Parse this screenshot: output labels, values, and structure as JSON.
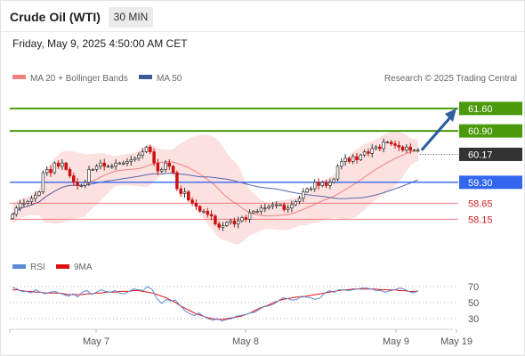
{
  "header": {
    "title": "Crude Oil (WTI)",
    "timeframe": "30 MIN"
  },
  "date_label": "Friday, May 9, 2025 4:50:00 AM CET",
  "legend": {
    "ma20": "MA 20 + Bollinger Bands",
    "ma50": "MA 50",
    "rsi": "RSI",
    "ma9": "9MA",
    "credit": "Research © 2025 Trading Central"
  },
  "colors": {
    "up": "#333333",
    "down": "#cc1111",
    "band": "#f9c9c9",
    "ma20": "#f08080",
    "ma50": "#5566aa",
    "target": "#4a9a0c",
    "pivot": "#3366ee",
    "support": "#e84a4a",
    "current": "#333333",
    "arrow": "#2f5f9f",
    "rsi": "#5b8ad6",
    "ma9": "#dd1111"
  },
  "chart_data": [
    {
      "type": "candlestick",
      "x_ticks": [
        "May 7",
        "May 8",
        "May 9",
        "May 19"
      ],
      "price_levels": [
        {
          "value": 61.6,
          "label": "61.60",
          "kind": "target"
        },
        {
          "value": 60.9,
          "label": "60.90",
          "kind": "target"
        },
        {
          "value": 60.17,
          "label": "60.17",
          "kind": "current"
        },
        {
          "value": 59.3,
          "label": "59.30",
          "kind": "pivot"
        },
        {
          "value": 58.65,
          "label": "58.65",
          "kind": "support"
        },
        {
          "value": 58.15,
          "label": "58.15",
          "kind": "support"
        }
      ],
      "ylim": [
        57.3,
        62.15
      ],
      "closes": [
        58.3,
        58.5,
        58.65,
        58.65,
        58.7,
        58.8,
        58.9,
        59.0,
        59.6,
        59.7,
        59.6,
        59.9,
        59.8,
        59.9,
        59.7,
        59.5,
        59.3,
        59.2,
        59.2,
        59.3,
        59.7,
        59.7,
        59.8,
        59.9,
        59.8,
        59.8,
        59.8,
        59.9,
        59.9,
        59.9,
        59.95,
        60.0,
        60.05,
        60.15,
        60.25,
        60.4,
        60.25,
        59.9,
        59.65,
        59.7,
        59.9,
        59.8,
        59.6,
        59.1,
        58.95,
        59.0,
        58.75,
        58.65,
        58.55,
        58.4,
        58.4,
        58.3,
        58.25,
        58.0,
        57.9,
        57.95,
        58.05,
        58.1,
        58.0,
        58.1,
        58.2,
        58.15,
        58.35,
        58.4,
        58.4,
        58.5,
        58.5,
        58.55,
        58.6,
        58.6,
        58.6,
        58.45,
        58.5,
        58.6,
        58.7,
        58.8,
        59.0,
        59.1,
        59.1,
        59.3,
        59.2,
        59.3,
        59.2,
        59.3,
        59.4,
        59.8,
        59.95,
        60.05,
        59.95,
        60.1,
        60.0,
        60.15,
        60.25,
        60.2,
        60.35,
        60.4,
        60.35,
        60.55,
        60.55,
        60.5,
        60.45,
        60.4,
        60.3,
        60.4,
        60.3,
        60.3,
        60.3
      ]
    },
    {
      "type": "line",
      "name": "RSI",
      "yticks": [
        70,
        50,
        30
      ],
      "ylim": [
        20,
        80
      ],
      "rsi": [
        69,
        67,
        64,
        64,
        62,
        66,
        63,
        61,
        63,
        64,
        62,
        60,
        58,
        61,
        57,
        63,
        65,
        60,
        63,
        66,
        64,
        63,
        65,
        62,
        61,
        64,
        67,
        66,
        65,
        70,
        66,
        55,
        49,
        54,
        52,
        53,
        46,
        40,
        36,
        34,
        37,
        33,
        30,
        28,
        30,
        27,
        29,
        30,
        33,
        34,
        35,
        37,
        38,
        42,
        45,
        46,
        48,
        52,
        56,
        55,
        53,
        54,
        58,
        57,
        56,
        54,
        56,
        62,
        65,
        63,
        66,
        66,
        65,
        66,
        67,
        68,
        68,
        67,
        65,
        65,
        63,
        65,
        66,
        68,
        67,
        64,
        62,
        65
      ],
      "ma9": [
        66,
        66,
        65,
        64,
        64,
        63,
        63,
        62,
        62,
        62,
        62,
        61,
        60,
        60,
        60,
        60,
        61,
        61,
        62,
        62,
        63,
        63,
        63,
        64,
        64,
        64,
        65,
        65,
        64,
        63,
        62,
        60,
        58,
        56,
        53,
        50,
        46,
        43,
        40,
        37,
        35,
        33,
        31,
        30,
        29,
        29,
        30,
        31,
        32,
        33,
        35,
        37,
        40,
        43,
        45,
        47,
        50,
        52,
        54,
        55,
        56,
        57,
        57,
        58,
        59,
        60,
        61,
        62,
        63,
        64,
        65,
        66,
        66,
        67,
        67,
        67,
        67,
        67,
        67,
        66,
        66,
        66,
        66,
        65,
        65,
        64,
        64,
        64
      ]
    }
  ]
}
